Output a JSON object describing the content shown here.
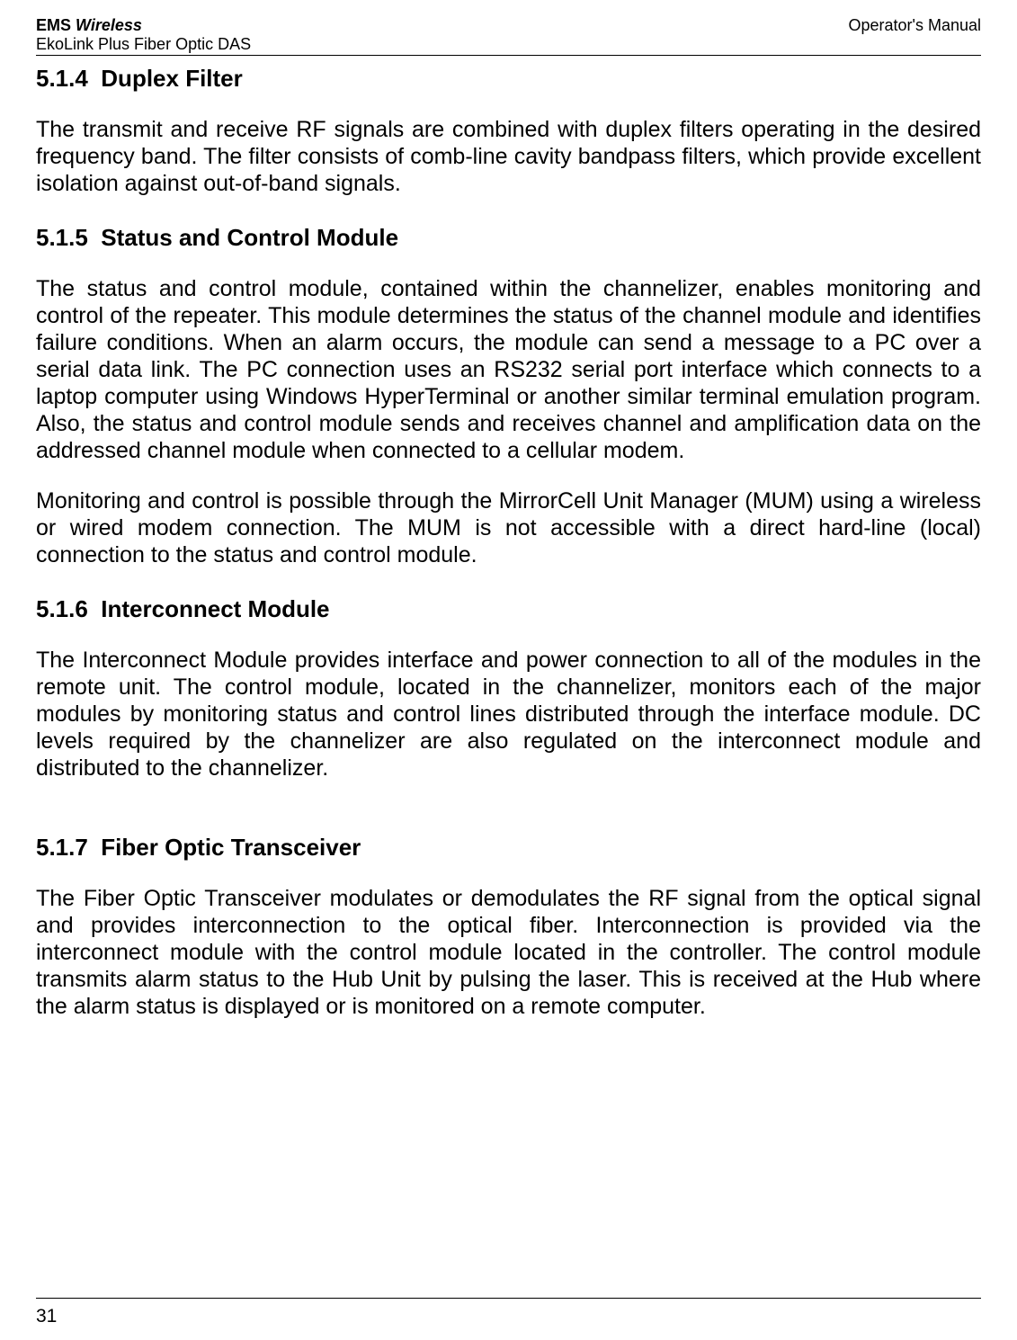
{
  "header": {
    "product_bold": "EMS",
    "product_italic": " Wireless",
    "subtitle": "EkoLink Plus Fiber Optic DAS",
    "right": "Operator's Manual"
  },
  "sections": [
    {
      "number": "5.1.4",
      "title": "Duplex Filter",
      "paragraphs": [
        "The transmit and receive RF signals are combined with duplex filters operating in the desired frequency band. The filter consists of comb-line cavity bandpass filters, which provide excellent isolation against out-of-band signals."
      ]
    },
    {
      "number": "5.1.5",
      "title": "Status and Control Module",
      "paragraphs": [
        "The status and control module, contained within the channelizer, enables monitoring and control of the repeater. This module determines the status of the channel module and identifies failure conditions. When an alarm occurs, the module can send a message to a PC over a serial data link. The PC connection uses an RS232 serial port interface which connects to a laptop computer using Windows HyperTerminal or another similar terminal emulation program. Also, the status and control module sends and receives channel and amplification data on the addressed channel module when connected to a cellular modem.",
        "Monitoring and control is possible through the MirrorCell Unit Manager (MUM) using a wireless or wired modem connection. The MUM is not accessible with a direct hard-line (local) connection to the status and control module."
      ]
    },
    {
      "number": "5.1.6",
      "title": "Interconnect Module",
      "paragraphs": [
        "The Interconnect Module provides interface and power connection to all of the modules in the remote unit.  The control module, located in the channelizer, monitors each of the major modules by monitoring status and control lines distributed through the interface module.  DC levels required by the channelizer are also regulated on the interconnect module and distributed to the channelizer."
      ]
    },
    {
      "number": "5.1.7",
      "title": "Fiber Optic Transceiver",
      "paragraphs": [
        "The Fiber Optic Transceiver modulates or demodulates the RF signal from the optical signal and provides interconnection to the optical fiber.  Interconnection is provided via the interconnect module with the control module located in the controller.  The control module transmits alarm status to the Hub Unit by pulsing the laser.  This is received at the Hub where the alarm status is displayed or is monitored on a remote computer."
      ]
    }
  ],
  "page_number": "31"
}
